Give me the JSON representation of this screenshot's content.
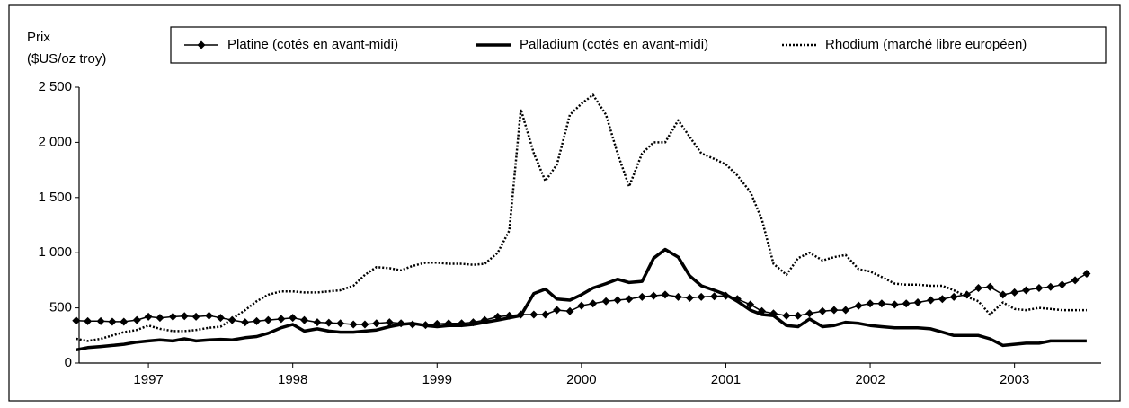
{
  "chart_data": {
    "type": "line",
    "ylabel_lines": [
      "Prix",
      "($US/oz troy)"
    ],
    "x": [
      1996.5,
      1996.58,
      1996.67,
      1996.75,
      1996.83,
      1996.92,
      1997.0,
      1997.08,
      1997.17,
      1997.25,
      1997.33,
      1997.42,
      1997.5,
      1997.58,
      1997.67,
      1997.75,
      1997.83,
      1997.92,
      1998.0,
      1998.08,
      1998.17,
      1998.25,
      1998.33,
      1998.42,
      1998.5,
      1998.58,
      1998.67,
      1998.75,
      1998.83,
      1998.92,
      1999.0,
      1999.08,
      1999.17,
      1999.25,
      1999.33,
      1999.42,
      1999.5,
      1999.58,
      1999.67,
      1999.75,
      1999.83,
      1999.92,
      2000.0,
      2000.08,
      2000.17,
      2000.25,
      2000.33,
      2000.42,
      2000.5,
      2000.58,
      2000.67,
      2000.75,
      2000.83,
      2000.92,
      2001.0,
      2001.08,
      2001.17,
      2001.25,
      2001.33,
      2001.42,
      2001.5,
      2001.58,
      2001.67,
      2001.75,
      2001.83,
      2001.92,
      2002.0,
      2002.08,
      2002.17,
      2002.25,
      2002.33,
      2002.42,
      2002.5,
      2002.58,
      2002.67,
      2002.75,
      2002.83,
      2002.92,
      2003.0,
      2003.08,
      2003.17,
      2003.25,
      2003.33,
      2003.42,
      2003.5
    ],
    "series": [
      {
        "name": "Platine (cotés en avant-midi)",
        "color": "#000000",
        "line_width": 1.5,
        "marker": "diamond",
        "values": [
          385,
          380,
          380,
          375,
          375,
          390,
          420,
          410,
          420,
          425,
          420,
          430,
          410,
          390,
          370,
          380,
          390,
          400,
          410,
          390,
          370,
          365,
          360,
          350,
          350,
          360,
          370,
          360,
          350,
          345,
          355,
          360,
          360,
          370,
          390,
          420,
          430,
          440,
          440,
          440,
          480,
          470,
          520,
          540,
          560,
          570,
          580,
          600,
          610,
          620,
          600,
          590,
          600,
          605,
          610,
          580,
          530,
          470,
          450,
          430,
          430,
          450,
          470,
          480,
          480,
          520,
          540,
          540,
          530,
          540,
          550,
          570,
          580,
          600,
          620,
          680,
          690,
          620,
          640,
          660,
          680,
          690,
          710,
          750,
          810
        ]
      },
      {
        "name": "Palladium (cotés en avant-midi)",
        "color": "#000000",
        "line_width": 3.5,
        "values": [
          120,
          140,
          150,
          160,
          170,
          190,
          200,
          210,
          200,
          220,
          200,
          210,
          215,
          210,
          230,
          240,
          270,
          320,
          350,
          290,
          310,
          290,
          280,
          280,
          290,
          300,
          330,
          350,
          360,
          340,
          330,
          340,
          340,
          350,
          370,
          390,
          410,
          430,
          630,
          670,
          580,
          570,
          620,
          680,
          720,
          760,
          730,
          740,
          950,
          1030,
          960,
          790,
          700,
          660,
          620,
          560,
          480,
          440,
          430,
          340,
          330,
          400,
          330,
          340,
          370,
          360,
          340,
          330,
          320,
          320,
          320,
          310,
          280,
          250,
          250,
          250,
          220,
          160,
          170,
          180,
          180,
          200,
          200,
          200,
          200
        ]
      },
      {
        "name": "Rhodium (marché libre européen)",
        "color": "#000000",
        "line_width": 2.5,
        "dash": "dotted",
        "values": [
          220,
          200,
          220,
          250,
          280,
          300,
          340,
          310,
          290,
          290,
          300,
          320,
          330,
          400,
          480,
          560,
          620,
          650,
          650,
          640,
          640,
          650,
          660,
          700,
          800,
          870,
          860,
          840,
          880,
          910,
          910,
          900,
          900,
          890,
          900,
          1000,
          1200,
          2300,
          1900,
          1650,
          1800,
          2250,
          2350,
          2430,
          2250,
          1900,
          1600,
          1900,
          2000,
          2000,
          2200,
          2050,
          1900,
          1850,
          1800,
          1700,
          1550,
          1300,
          900,
          800,
          950,
          1000,
          930,
          960,
          980,
          850,
          830,
          780,
          720,
          710,
          710,
          700,
          700,
          660,
          600,
          560,
          440,
          550,
          490,
          480,
          500,
          490,
          480,
          480,
          480
        ]
      }
    ],
    "xlim": [
      1996.52,
      2003.6
    ],
    "xticks": [
      1997,
      1998,
      1999,
      2000,
      2001,
      2002,
      2003
    ],
    "ylim": [
      0,
      2500
    ],
    "yticks": [
      0,
      500,
      {
        "value": 1000,
        "label": "1 000"
      },
      {
        "value": 1500,
        "label": "1 500"
      },
      {
        "value": 2000,
        "label": "2 000"
      },
      {
        "value": 2500,
        "label": "2 500"
      }
    ]
  }
}
